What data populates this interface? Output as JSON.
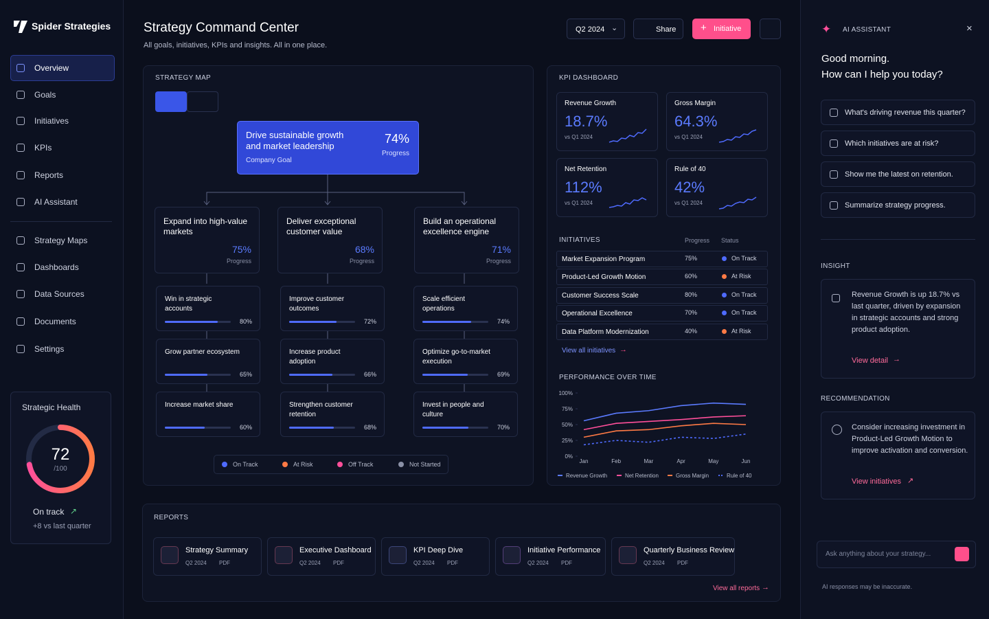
{
  "sidebar": {
    "brand": "Spider Strategies",
    "nav": [
      "Overview",
      "Goals",
      "Initiatives",
      "KPIs",
      "Reports",
      "AI Assistant"
    ],
    "nav2": [
      "Strategy Maps",
      "Dashboards",
      "Data Sources",
      "Documents",
      "Settings"
    ],
    "health": {
      "title": "Strategic Health",
      "score": 72,
      "max": {
        "value": 100,
        "label": "/100"
      },
      "status": "On track",
      "change": "+8 vs last quarter"
    }
  },
  "header": {
    "title": "Strategy Command Center",
    "subtitle": "All goals, initiatives, KPIs and insights. All in one place.",
    "period": "Q2 2024",
    "share": "Share",
    "new": "Initiative"
  },
  "strategy_map": {
    "label": "STRATEGY MAP",
    "goal": {
      "title": "Drive sustainable growth and market leadership",
      "progress": 74,
      "progress_label": "74%",
      "caption": "Progress",
      "type": "Company Goal"
    },
    "pillars": [
      {
        "title": "Expand into high-value markets",
        "progress": 75,
        "progress_label": "75%",
        "caption": "Progress",
        "objectives": [
          {
            "title": "Win in strategic accounts",
            "progress": 80,
            "progress_label": "80%"
          },
          {
            "title": "Grow partner ecosystem",
            "progress": 65,
            "progress_label": "65%"
          },
          {
            "title": "Increase market share",
            "progress": 60,
            "progress_label": "60%"
          }
        ]
      },
      {
        "title": "Deliver exceptional customer value",
        "progress": 68,
        "progress_label": "68%",
        "caption": "Progress",
        "objectives": [
          {
            "title": "Improve customer outcomes",
            "progress": 72,
            "progress_label": "72%"
          },
          {
            "title": "Increase product adoption",
            "progress": 66,
            "progress_label": "66%"
          },
          {
            "title": "Strengthen customer retention",
            "progress": 68,
            "progress_label": "68%"
          }
        ]
      },
      {
        "title": "Build an operational excellence engine",
        "progress": 71,
        "progress_label": "71%",
        "caption": "Progress",
        "objectives": [
          {
            "title": "Scale efficient operations",
            "progress": 74,
            "progress_label": "74%"
          },
          {
            "title": "Optimize go-to-market execution",
            "progress": 69,
            "progress_label": "69%"
          },
          {
            "title": "Invest in people and culture",
            "progress": 70,
            "progress_label": "70%"
          }
        ]
      }
    ],
    "legend": [
      {
        "label": "On Track",
        "color": "#4f6bff"
      },
      {
        "label": "At Risk",
        "color": "#ff7a45"
      },
      {
        "label": "Off Track",
        "color": "#ff4f9a"
      },
      {
        "label": "Not Started",
        "color": "#8a90a6"
      }
    ]
  },
  "kpi": {
    "label": "KPI DASHBOARD",
    "cards": [
      {
        "name": "Revenue Growth",
        "value": 18.7,
        "value_label": "18.7%",
        "compare": "vs Q1 2024"
      },
      {
        "name": "Gross Margin",
        "value": 64.3,
        "value_label": "64.3%",
        "compare": "vs Q1 2024"
      },
      {
        "name": "Net Retention",
        "value": 112,
        "value_label": "112%",
        "compare": "vs Q1 2024"
      },
      {
        "name": "Rule of 40",
        "value": 42,
        "value_label": "42%",
        "compare": "vs Q1 2024"
      }
    ]
  },
  "initiatives": {
    "title": "INITIATIVES",
    "columns": [
      "Progress",
      "Status"
    ],
    "rows": [
      {
        "name": "Market Expansion Program",
        "progress": 75,
        "progress_label": "75%",
        "status": "On Track"
      },
      {
        "name": "Product-Led Growth Motion",
        "progress": 60,
        "progress_label": "60%",
        "status": "At Risk"
      },
      {
        "name": "Customer Success Scale",
        "progress": 80,
        "progress_label": "80%",
        "status": "On Track"
      },
      {
        "name": "Operational Excellence",
        "progress": 70,
        "progress_label": "70%",
        "status": "On Track"
      },
      {
        "name": "Data Platform Modernization",
        "progress": 40,
        "progress_label": "40%",
        "status": "At Risk"
      }
    ],
    "link": "View all initiatives"
  },
  "performance": {
    "type": "line",
    "title": "PERFORMANCE OVER TIME",
    "categories": [
      "Jan",
      "Feb",
      "Mar",
      "Apr",
      "May",
      "Jun"
    ],
    "ylim": [
      0,
      100
    ],
    "yticks": [
      {
        "value": 0,
        "label": "0%"
      },
      {
        "value": 25,
        "label": "25%"
      },
      {
        "value": 50,
        "label": "50%"
      },
      {
        "value": 75,
        "label": "75%"
      },
      {
        "value": 100,
        "label": "100%"
      }
    ],
    "series": [
      {
        "name": "Revenue Growth",
        "color": "#5b7bff",
        "style": "solid",
        "values": [
          56,
          68,
          72,
          80,
          84,
          82
        ]
      },
      {
        "name": "Net Retention",
        "color": "#ff4f9a",
        "style": "solid",
        "values": [
          42,
          52,
          55,
          58,
          62,
          64
        ]
      },
      {
        "name": "Gross Margin",
        "color": "#ff7a45",
        "style": "solid",
        "values": [
          30,
          40,
          42,
          48,
          52,
          50
        ]
      },
      {
        "name": "Rule of 40",
        "color": "#4f6bff",
        "style": "dashed",
        "values": [
          18,
          25,
          22,
          30,
          28,
          35
        ]
      }
    ]
  },
  "reports": {
    "title": "REPORTS",
    "items": [
      {
        "name": "Strategy Summary",
        "period": "Q2 2024",
        "format": "PDF"
      },
      {
        "name": "Executive Dashboard",
        "period": "Q2 2024",
        "format": "PDF"
      },
      {
        "name": "KPI Deep Dive",
        "period": "Q2 2024",
        "format": "PDF"
      },
      {
        "name": "Initiative Performance",
        "period": "Q2 2024",
        "format": "PDF"
      },
      {
        "name": "Quarterly Business Review",
        "period": "Q2 2024",
        "format": "PDF"
      }
    ],
    "link": "View all reports"
  },
  "assistant": {
    "title": "AI ASSISTANT",
    "greeting": "Good morning.",
    "prompt": "How can I help you today?",
    "suggestions": [
      "What's driving revenue this quarter?",
      "Which initiatives are at risk?",
      "Show me the latest on retention.",
      "Summarize strategy progress."
    ],
    "insight": {
      "label": "INSIGHT",
      "text": "Revenue Growth is up 18.7% vs last quarter, driven by expansion in strategic accounts and strong product adoption.",
      "link": "View detail"
    },
    "recommendation": {
      "label": "RECOMMENDATION",
      "text": "Consider increasing investment in Product-Led Growth Motion to improve activation and conversion.",
      "link": "View initiatives"
    },
    "input_placeholder": "Ask anything about your strategy...",
    "disclaimer": "AI responses may be inaccurate."
  }
}
